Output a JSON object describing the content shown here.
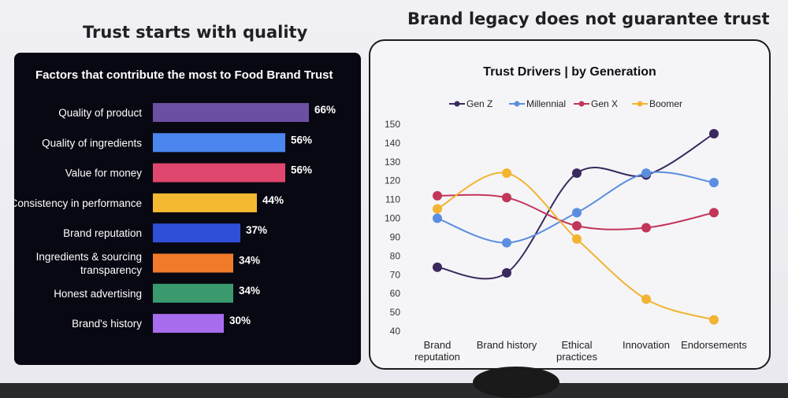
{
  "slide": {
    "left_heading": "Trust starts with quality",
    "right_heading": "Brand legacy does not guarantee trust"
  },
  "chart_data": [
    {
      "type": "bar",
      "orientation": "horizontal",
      "title": "Factors that contribute the most to Food Brand Trust",
      "categories": [
        "Quality of product",
        "Quality of ingredients",
        "Value for money",
        "Consistency in performance",
        "Brand reputation",
        "Ingredients & sourcing transparency",
        "Honest advertising",
        "Brand's history"
      ],
      "values": [
        66,
        56,
        56,
        44,
        37,
        34,
        34,
        30
      ],
      "value_labels": [
        "66%",
        "56%",
        "56%",
        "44%",
        "37%",
        "34%",
        "34%",
        "30%"
      ],
      "colors": [
        "#6b4fa2",
        "#4a86ee",
        "#e0476e",
        "#f4b931",
        "#2f4fd8",
        "#f07a2a",
        "#3a9a6e",
        "#a86cee"
      ],
      "unit": "%",
      "background": "#080812",
      "text_color": "#ffffff"
    },
    {
      "type": "line",
      "title": "Trust Drivers | by Generation",
      "categories": [
        "Brand reputation",
        "Brand history",
        "Ethical practices",
        "Innovation",
        "Endorsements"
      ],
      "series": [
        {
          "name": "Gen Z",
          "color": "#3a2a5e",
          "values": [
            74,
            71,
            124,
            123,
            145
          ]
        },
        {
          "name": "Millennial",
          "color": "#5b8ee0",
          "values": [
            100,
            87,
            103,
            124,
            119
          ]
        },
        {
          "name": "Gen X",
          "color": "#c2365a",
          "values": [
            112,
            111,
            96,
            95,
            103
          ]
        },
        {
          "name": "Boomer",
          "color": "#f2b431",
          "values": [
            105,
            124,
            89,
            57,
            46
          ]
        }
      ],
      "y_ticks": [
        "150",
        "140",
        "130",
        "120",
        "110",
        "100",
        "90",
        "80",
        "70",
        "60",
        "50",
        "40"
      ],
      "ylim": [
        40,
        150
      ],
      "smooth": true,
      "grid": false,
      "legend_position": "top"
    }
  ]
}
